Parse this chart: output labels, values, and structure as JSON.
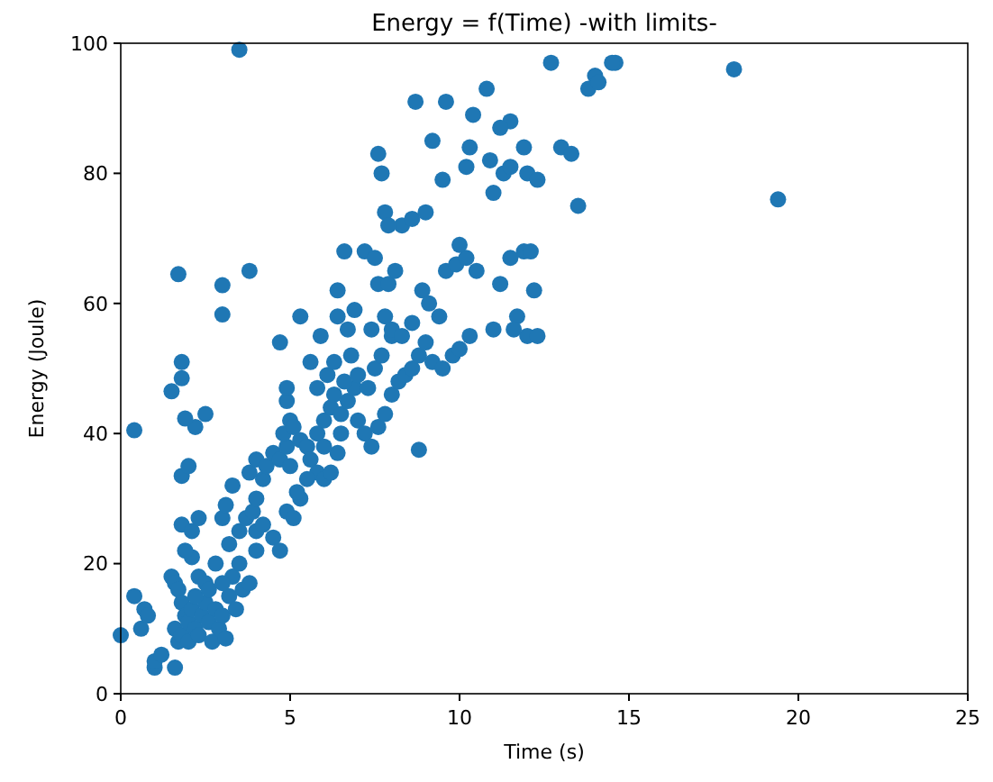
{
  "chart_data": {
    "type": "scatter",
    "title": "Energy = f(Time) -with limits-",
    "xlabel": "Time (s)",
    "ylabel": "Energy (Joule)",
    "xlim": [
      0,
      25
    ],
    "ylim": [
      0,
      100
    ],
    "xticks": [
      0,
      5,
      10,
      15,
      20,
      25
    ],
    "yticks": [
      0,
      20,
      40,
      60,
      80,
      100
    ],
    "grid": false,
    "marker": "circle",
    "series": [
      {
        "color": "#1f77b4",
        "x": [
          0,
          0.4,
          0.6,
          0.7,
          0.8,
          1.0,
          1.0,
          1.2,
          1.6,
          1.5,
          1.6,
          1.7,
          1.8,
          1.9,
          1.6,
          1.7,
          1.8,
          2.0,
          2.0,
          2.1,
          2.2,
          2.3,
          2.4,
          2.5,
          2.6,
          2.7,
          2.2,
          2.3,
          2.1,
          1.9,
          2.5,
          2.6,
          2.8,
          2.9,
          3.0,
          3.1,
          3.2,
          3.3,
          3.4,
          3.0,
          2.8,
          3.6,
          3.5,
          3.2,
          3.8,
          4.0,
          3.0,
          3.1,
          3.3,
          1.8,
          2.1,
          2.3,
          1.8,
          2.0,
          2.2,
          0.4,
          1.5,
          1.8,
          1.9,
          2.5,
          1.8,
          1.7,
          3.0,
          3.0,
          3.8,
          3.5,
          3.5,
          3.7,
          3.9,
          4.0,
          4.2,
          4.5,
          4.7,
          4.9,
          5.1,
          5.3,
          4.0,
          4.2,
          3.8,
          4.0,
          4.3,
          4.5,
          4.7,
          4.9,
          5.0,
          4.8,
          5.0,
          4.9,
          4.9,
          5.1,
          5.3,
          5.5,
          5.6,
          5.8,
          6.0,
          5.8,
          6.0,
          6.2,
          6.3,
          6.5,
          6.7,
          6.9,
          7.0,
          7.2,
          7.4,
          7.6,
          7.8,
          8.0,
          8.2,
          8.4,
          8.6,
          8.8,
          9.0,
          9.2,
          9.5,
          9.8,
          10.0,
          10.3,
          8.8,
          6.4,
          6.2,
          5.5,
          5.2,
          6.0,
          6.5,
          7.3,
          7.5,
          7.7,
          8.0,
          5.8,
          6.1,
          6.3,
          6.6,
          6.8,
          7.0,
          5.3,
          4.7,
          5.6,
          5.9,
          6.4,
          6.7,
          6.9,
          7.4,
          7.8,
          8.0,
          8.3,
          8.6,
          8.9,
          9.1,
          9.4,
          9.6,
          9.9,
          10.2,
          10.5,
          10.0,
          6.4,
          6.6,
          7.2,
          7.5,
          7.6,
          7.9,
          8.1,
          8.3,
          8.6,
          7.8,
          7.9,
          7.7,
          7.6,
          9.0,
          9.2,
          8.7,
          9.6,
          9.5,
          10.3,
          10.4,
          10.9,
          11.0,
          11.3,
          11.5,
          11.5,
          11.9,
          11.9,
          12.1,
          11.2,
          11.0,
          11.7,
          12.0,
          12.3,
          11.5,
          12.2,
          11.6,
          10.2,
          10.8,
          11.2,
          12.7,
          13.0,
          13.3,
          13.5,
          13.8,
          14.0,
          14.1,
          14.6,
          14.5,
          18.1,
          19.4,
          12.0,
          12.3
        ],
        "values": [
          9,
          15,
          10,
          13,
          12,
          4,
          5,
          6,
          4,
          18,
          17,
          16,
          14,
          12,
          10,
          8,
          9,
          8,
          11,
          13,
          10,
          9,
          12,
          14,
          11,
          8,
          15,
          18,
          21,
          22,
          17,
          16,
          13,
          10,
          12,
          8.5,
          15,
          18,
          13,
          17,
          20,
          16,
          20,
          23,
          17,
          22,
          27,
          29,
          32,
          26,
          25,
          27,
          33.5,
          35,
          41,
          40.5,
          46.5,
          48.5,
          42.3,
          43,
          51,
          64.5,
          58.3,
          62.8,
          65,
          99,
          25,
          27,
          28,
          25,
          26,
          24,
          22,
          28,
          27,
          30,
          30,
          33,
          34,
          36,
          35,
          37,
          36,
          38,
          35,
          40,
          42,
          45,
          47,
          41,
          39,
          38,
          36,
          34,
          33,
          40,
          42,
          44,
          46,
          43,
          45,
          47,
          42,
          40,
          38,
          41,
          43,
          46,
          48,
          49,
          50,
          52,
          54,
          51,
          50,
          52,
          53,
          55,
          37.5,
          37,
          34,
          33,
          31,
          38,
          40,
          47,
          50,
          52,
          55,
          47,
          49,
          51,
          48,
          52,
          49,
          58,
          54,
          51,
          55,
          58,
          56,
          59,
          56,
          58,
          56,
          55,
          57,
          62,
          60,
          58,
          65,
          66,
          67,
          65,
          69,
          62,
          68,
          68,
          67,
          63,
          63,
          65,
          72,
          73,
          74,
          72,
          80,
          83,
          74,
          85,
          91,
          91,
          79,
          84,
          89,
          82,
          77,
          80,
          81,
          88,
          84,
          68,
          68,
          63,
          56,
          58,
          55,
          55,
          67,
          62,
          56,
          81,
          93,
          87,
          97,
          84,
          83,
          75,
          93,
          95,
          94,
          97,
          97,
          96,
          76,
          80,
          79
        ]
      }
    ]
  }
}
